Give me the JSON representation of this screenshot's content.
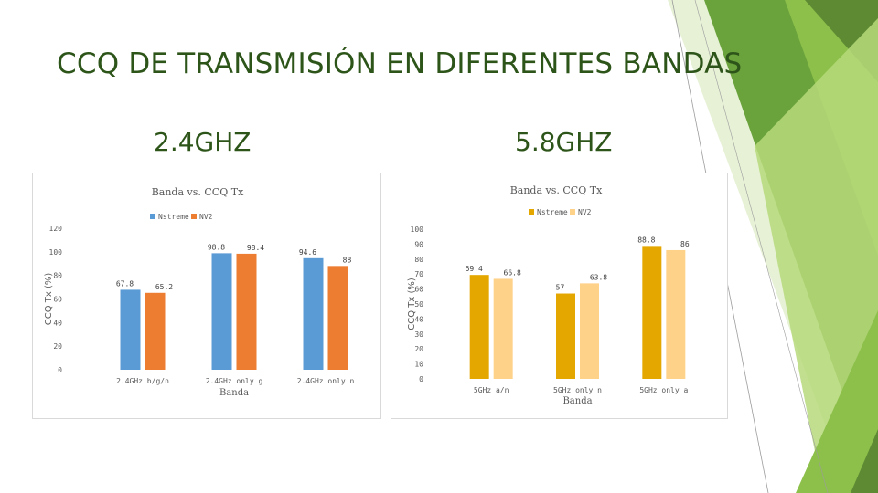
{
  "page": {
    "title": "CCQ DE TRANSMISIÓN EN DIFERENTES BANDAS",
    "headings": [
      "2.4GHZ",
      "5.8GHZ"
    ]
  },
  "colors": {
    "title": "#2d5519",
    "green_light": "#b6d97a",
    "green_mid": "#8cc04a",
    "green_dark": "#5d8a33",
    "nstreme_24": "#5b9bd5",
    "nv2_24": "#ed7d31",
    "nstreme_58": "#e3a700",
    "nv2_58": "#ffd28a"
  },
  "chart_data": [
    {
      "type": "bar",
      "title": "Banda vs. CCQ Tx",
      "xlabel": "Banda",
      "ylabel": "CCQ Tx (%)",
      "categories": [
        "2.4GHz b/g/n",
        "2.4GHz only g",
        "2.4GHz only n"
      ],
      "series": [
        {
          "name": "Nstreme",
          "values": [
            67.8,
            98.8,
            94.6
          ]
        },
        {
          "name": "NV2",
          "values": [
            65.2,
            98.4,
            88
          ]
        }
      ],
      "ylim": [
        0,
        120
      ],
      "yticks": [
        "0",
        "20",
        "40",
        "60",
        "80",
        "100",
        "120"
      ],
      "grid": false,
      "legend": "top"
    },
    {
      "type": "bar",
      "title": "Banda vs. CCQ Tx",
      "xlabel": "Banda",
      "ylabel": "CCQ Tx (%)",
      "categories": [
        "5GHz a/n",
        "5GHz only n",
        "5GHz only a"
      ],
      "series": [
        {
          "name": "Nstreme",
          "values": [
            69.4,
            57,
            88.8
          ]
        },
        {
          "name": "NV2",
          "values": [
            66.8,
            63.8,
            86
          ]
        }
      ],
      "ylim": [
        0,
        100
      ],
      "yticks": [
        "0",
        "10",
        "20",
        "30",
        "40",
        "50",
        "60",
        "70",
        "80",
        "90",
        "100"
      ],
      "grid": false,
      "legend": "top-right"
    }
  ]
}
